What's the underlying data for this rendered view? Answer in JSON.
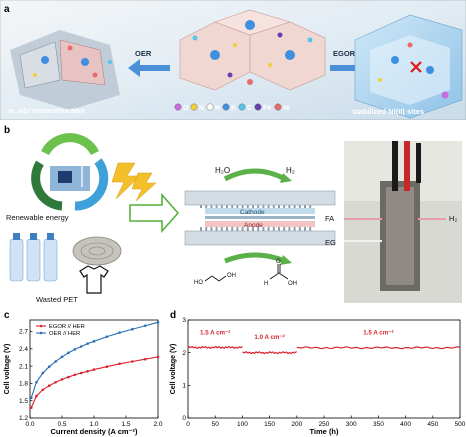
{
  "panel_a": {
    "label": "a",
    "oer_label": "OER",
    "egor_label": "EGOR",
    "left_caption_italic": "in situ",
    "left_caption_rest": " reconstruction",
    "right_caption": "stabilized Ni(II) sites",
    "legend": [
      {
        "symbol": "O",
        "color": "#c86be0"
      },
      {
        "symbol": "N",
        "color": "#f2d03a"
      },
      {
        "symbol": "H",
        "color": "#ffffff"
      },
      {
        "symbol": "K",
        "color": "#3f8fe0"
      },
      {
        "symbol": "C",
        "color": "#56c4e8"
      },
      {
        "symbol": "Fe",
        "color": "#6a3fb0"
      },
      {
        "symbol": "Ni",
        "color": "#e86a6a"
      }
    ]
  },
  "panel_b": {
    "label": "b",
    "renewable_label": "Renewable energy",
    "pet_label": "Wasted PET",
    "h2o": "H₂O",
    "h2": "H₂",
    "cathode": "Cathode",
    "anode": "Anode",
    "fa": "FA",
    "eg": "EG",
    "h2_right": "H₂"
  },
  "chart_data": [
    {
      "type": "line",
      "panel": "c",
      "xlabel": "Current density (A cm⁻²)",
      "ylabel": "Cell voltage (V)",
      "xlim": [
        0,
        2.0
      ],
      "ylim": [
        1.2,
        2.9
      ],
      "xticks": [
        "0.0",
        "0.5",
        "1.0",
        "1.5",
        "2.0"
      ],
      "yticks": [
        "1.2",
        "1.5",
        "1.8",
        "2.1",
        "2.4",
        "2.7"
      ],
      "series": [
        {
          "name": "EGOR // HER",
          "color": "#d9232e",
          "x": [
            0.02,
            0.1,
            0.2,
            0.3,
            0.4,
            0.5,
            0.6,
            0.7,
            0.8,
            0.9,
            1.0,
            1.2,
            1.4,
            1.6,
            1.8,
            2.0
          ],
          "y": [
            1.38,
            1.58,
            1.69,
            1.76,
            1.82,
            1.87,
            1.91,
            1.95,
            1.98,
            2.01,
            2.04,
            2.09,
            2.14,
            2.18,
            2.22,
            2.26
          ]
        },
        {
          "name": "OER // HER",
          "color": "#2a6fb5",
          "x": [
            0.02,
            0.1,
            0.2,
            0.3,
            0.4,
            0.5,
            0.6,
            0.7,
            0.8,
            0.9,
            1.0,
            1.2,
            1.4,
            1.6,
            1.8,
            2.0
          ],
          "y": [
            1.55,
            1.82,
            1.98,
            2.09,
            2.18,
            2.26,
            2.33,
            2.39,
            2.44,
            2.49,
            2.53,
            2.61,
            2.68,
            2.74,
            2.8,
            2.86
          ]
        }
      ]
    },
    {
      "type": "line",
      "panel": "d",
      "xlabel": "Time (h)",
      "ylabel": "Cell voltage (V)",
      "xlim": [
        0,
        500
      ],
      "ylim": [
        0,
        3
      ],
      "xticks": [
        "0",
        "50",
        "100",
        "150",
        "200",
        "250",
        "300",
        "350",
        "400",
        "450",
        "500"
      ],
      "yticks": [
        "0",
        "1",
        "2",
        "3"
      ],
      "annotations": [
        "1.5 A cm⁻²",
        "1.0 A cm⁻²",
        "1.5 A cm⁻²"
      ],
      "segments": [
        {
          "x": [
            0,
            100
          ],
          "y": 2.16
        },
        {
          "x": [
            100,
            200
          ],
          "y": 2.0
        },
        {
          "x": [
            200,
            500
          ],
          "y": 2.15
        }
      ],
      "color": "#d9232e"
    }
  ]
}
